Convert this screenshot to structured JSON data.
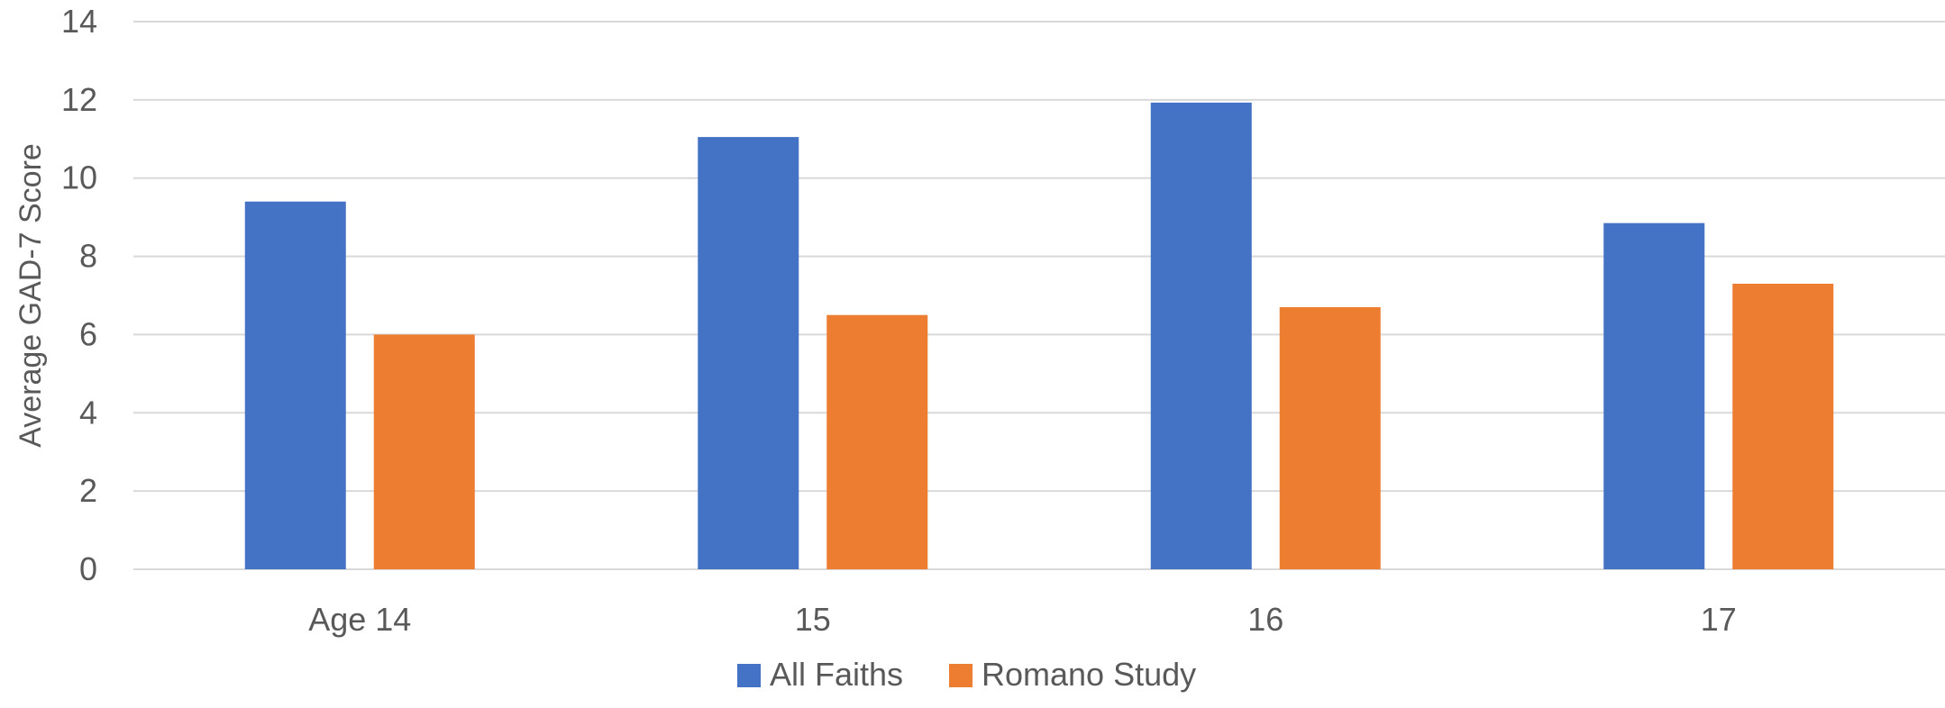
{
  "chart_data": {
    "type": "bar",
    "title": "",
    "xlabel": "",
    "ylabel": "Average GAD-7 Score",
    "ylim": [
      0,
      14
    ],
    "ytick_step": 2,
    "yticks": [
      "0",
      "2",
      "4",
      "6",
      "8",
      "10",
      "12",
      "14"
    ],
    "grid": true,
    "legend_position": "bottom",
    "categories": [
      "Age 14",
      "15",
      "16",
      "17"
    ],
    "series": [
      {
        "name": "All Faiths",
        "color": "#4472C4",
        "values": [
          9.4,
          11.05,
          11.93,
          8.85
        ]
      },
      {
        "name": "Romano Study",
        "color": "#ED7D31",
        "values": [
          6.0,
          6.5,
          6.7,
          7.3
        ]
      }
    ]
  }
}
